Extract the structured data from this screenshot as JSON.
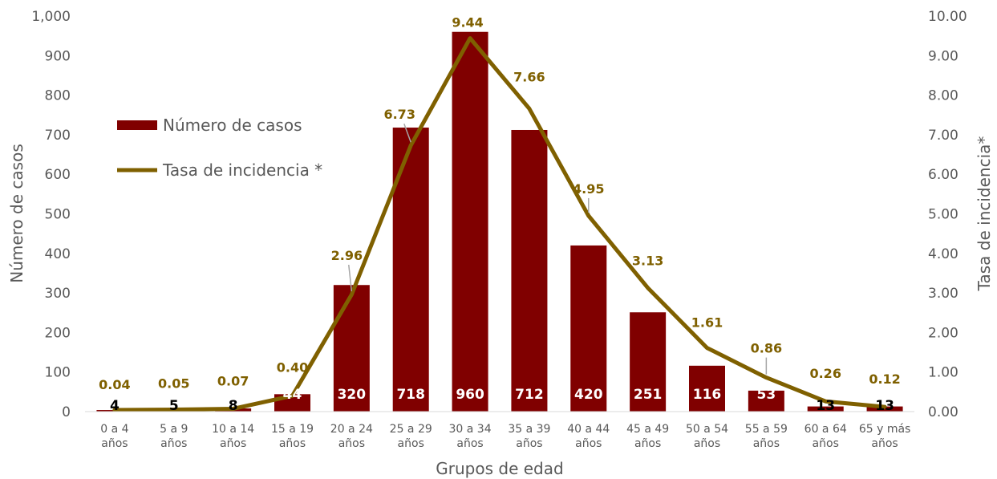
{
  "chart_data": {
    "type": "bar",
    "xlabel": "Grupos de edad",
    "ylabel": "Número de casos",
    "y2label": "Tasa de incidencia*",
    "ylim": [
      0,
      1000
    ],
    "y2lim": [
      0,
      10
    ],
    "yticks": [
      "0",
      "100",
      "200",
      "300",
      "400",
      "500",
      "600",
      "700",
      "800",
      "900",
      "1,000"
    ],
    "y2ticks": [
      "0.00",
      "1.00",
      "2.00",
      "3.00",
      "4.00",
      "5.00",
      "6.00",
      "7.00",
      "8.00",
      "9.00",
      "10.00"
    ],
    "categories": [
      [
        "0 a 4",
        "años"
      ],
      [
        "5 a 9",
        "años"
      ],
      [
        "10 a 14",
        "años"
      ],
      [
        "15 a 19",
        "años"
      ],
      [
        "20 a 24",
        "años"
      ],
      [
        "25 a 29",
        "años"
      ],
      [
        "30 a 34",
        "años"
      ],
      [
        "35 a 39",
        "años"
      ],
      [
        "40 a 44",
        "años"
      ],
      [
        "45 a 49",
        "años"
      ],
      [
        "50 a 54",
        "años"
      ],
      [
        "55 a 59",
        "años"
      ],
      [
        "60 a 64",
        "años"
      ],
      [
        "65 y más",
        "años"
      ]
    ],
    "series": [
      {
        "name": "Número de casos",
        "type": "bar",
        "axis": "left",
        "color": "#800000",
        "values": [
          4,
          5,
          8,
          44,
          320,
          718,
          960,
          712,
          420,
          251,
          116,
          53,
          13,
          13
        ],
        "labels": [
          "4",
          "5",
          "8",
          "44",
          "320",
          "718",
          "960",
          "712",
          "420",
          "251",
          "116",
          "53",
          "13",
          "13"
        ]
      },
      {
        "name": "Tasa de incidencia *",
        "type": "line",
        "axis": "right",
        "color": "#7F6000",
        "values": [
          0.04,
          0.05,
          0.07,
          0.4,
          2.96,
          6.73,
          9.44,
          7.66,
          4.95,
          3.13,
          1.61,
          0.86,
          0.26,
          0.12
        ],
        "labels": [
          "0.04",
          "0.05",
          "0.07",
          "0.40",
          "2.96",
          "6.73",
          "9.44",
          "7.66",
          "4.95",
          "3.13",
          "1.61",
          "0.86",
          "0.26",
          "0.12"
        ]
      }
    ],
    "legend": "upper-left",
    "grid": false
  }
}
